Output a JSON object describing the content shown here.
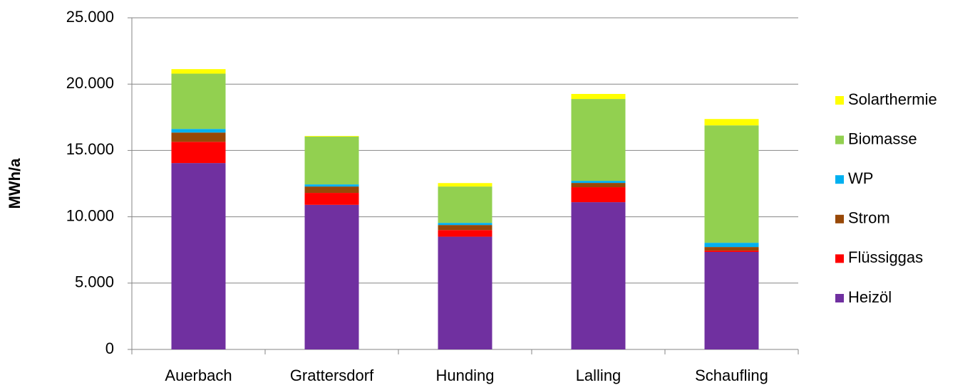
{
  "chart_data": {
    "type": "stacked_bar",
    "y_label": "MWh/a",
    "categories": [
      "Auerbach",
      "Grattersdorf",
      "Hunding",
      "Lalling",
      "Schaufling"
    ],
    "series": [
      {
        "name": "Heizöl",
        "color": "#7030a0",
        "values": [
          14050,
          10900,
          8500,
          11100,
          7350
        ]
      },
      {
        "name": "Flüssiggas",
        "color": "#ff0000",
        "values": [
          1600,
          900,
          500,
          1130,
          100
        ]
      },
      {
        "name": "Strom",
        "color": "#984807",
        "values": [
          700,
          480,
          380,
          320,
          270
        ]
      },
      {
        "name": "WP",
        "color": "#00b0f0",
        "values": [
          270,
          160,
          160,
          160,
          320
        ]
      },
      {
        "name": "Biomasse",
        "color": "#92d050",
        "values": [
          4170,
          3600,
          2740,
          6170,
          8850
        ]
      },
      {
        "name": "Solarthermie",
        "color": "#ffff00",
        "values": [
          340,
          50,
          260,
          380,
          480
        ]
      }
    ],
    "ylim": [
      0,
      25000
    ],
    "yticks": [
      0,
      {
        "value": 5000,
        "label": "5.000"
      },
      {
        "value": 10000,
        "label": "10.000"
      },
      {
        "value": 15000,
        "label": "15.000"
      },
      {
        "value": 20000,
        "label": "20.000"
      },
      {
        "value": 25000,
        "label": "25.000"
      }
    ],
    "grid": true,
    "legend": "right"
  }
}
